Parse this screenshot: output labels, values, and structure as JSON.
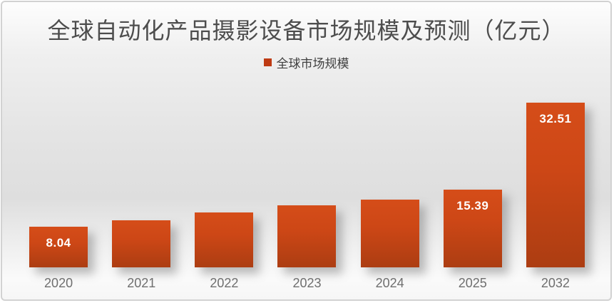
{
  "chart": {
    "title": "全球自动化产品摄影设备市场规模及预测（亿元）",
    "legend": {
      "label": "全球市场规模",
      "marker_color": "#be3a13",
      "position": "top-center"
    }
  },
  "chart_data": {
    "type": "bar",
    "title": "全球自动化产品摄影设备市场规模及预测（亿元）",
    "categories": [
      "2020",
      "2021",
      "2022",
      "2023",
      "2024",
      "2025",
      "2032"
    ],
    "series": [
      {
        "name": "全球市场规模",
        "values": [
          8.04,
          9.3,
          10.8,
          12.2,
          13.4,
          15.39,
          32.51
        ]
      }
    ],
    "data_labels": [
      "8.04",
      "",
      "",
      "",
      "",
      "15.39",
      "32.51"
    ],
    "xlabel": "",
    "ylabel": "",
    "ylim": [
      0,
      34
    ],
    "grid": false,
    "y_axis_shown": false,
    "legend_position": "top",
    "bar_color_top": "#d54d19",
    "bar_color_bottom": "#ac3d12",
    "data_label_color": "#ffffff",
    "axis_label_color": "#6f6f6f",
    "title_color": "#4d4d4d"
  }
}
